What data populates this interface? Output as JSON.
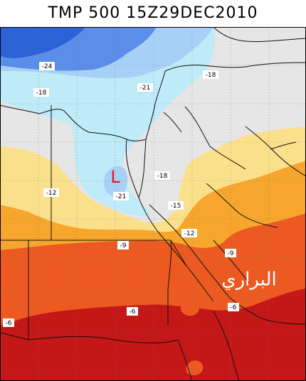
{
  "title": "TMP 500 15Z29DEC2010",
  "contour_labels": [
    {
      "id": "m24",
      "text": "-24"
    },
    {
      "id": "m21a",
      "text": "-21"
    },
    {
      "id": "m18a",
      "text": "-18"
    },
    {
      "id": "m18b",
      "text": "-18"
    },
    {
      "id": "m21b",
      "text": "-21"
    },
    {
      "id": "m18c",
      "text": "-18"
    },
    {
      "id": "m15",
      "text": "-15"
    },
    {
      "id": "m12a",
      "text": "-12"
    },
    {
      "id": "m12b",
      "text": "-12"
    },
    {
      "id": "m9a",
      "text": "-9"
    },
    {
      "id": "m9b",
      "text": "-9"
    },
    {
      "id": "m6a",
      "text": "-6"
    },
    {
      "id": "m6b",
      "text": "-6"
    },
    {
      "id": "m6c",
      "text": "-6"
    }
  ],
  "low_marker": "L",
  "watermark": "البراري",
  "colors": {
    "band_m27": "#2b63d6",
    "band_m24": "#5a8ee8",
    "band_m21": "#a7d0f6",
    "band_m18": "#bfeaf8",
    "band_m15": "#e6e6e6",
    "band_m12": "#fbe08c",
    "band_m9": "#f6a62c",
    "band_m6": "#ec5a22",
    "band_m3": "#c41717",
    "coast": "#111111",
    "grid": "#777777",
    "low": "#e8141c"
  }
}
